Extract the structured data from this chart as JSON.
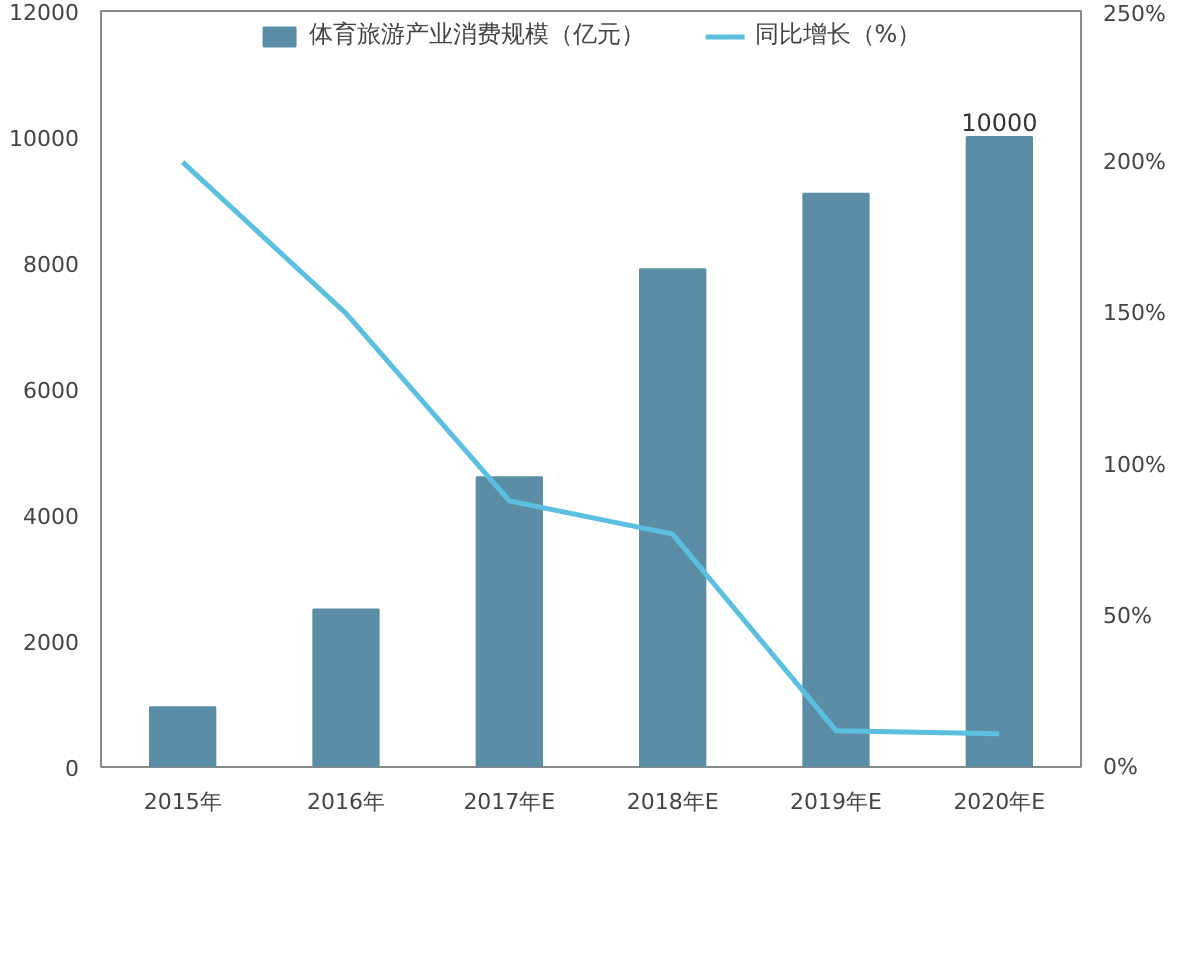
{
  "chart_data": {
    "type": "bar",
    "categories": [
      "2015年",
      "2016年",
      "2017年E",
      "2018年E",
      "2019年E",
      "2020年E"
    ],
    "series": [
      {
        "name": "体育旅游产业消费规模（亿元）",
        "color": "#5b8ea6",
        "values": [
          950,
          2500,
          4600,
          7900,
          9100,
          10000
        ],
        "value_labels": [
          null,
          null,
          null,
          null,
          null,
          "10000"
        ]
      },
      {
        "name": "同比增长（%）",
        "type": "line",
        "axis": "y2",
        "color": "#5bc0e0",
        "values": [
          200,
          150,
          88,
          77,
          12,
          11
        ]
      }
    ],
    "ylim": [
      0,
      12000
    ],
    "yticks": [
      0,
      2000,
      4000,
      6000,
      8000,
      10000,
      12000
    ],
    "y2lim": [
      0,
      250
    ],
    "y2ticks": [
      {
        "value": 0,
        "label": "0%"
      },
      {
        "value": 50,
        "label": "50%"
      },
      {
        "value": 100,
        "label": "100%"
      },
      {
        "value": 150,
        "label": "150%"
      },
      {
        "value": 200,
        "label": "200%"
      },
      {
        "value": 250,
        "label": "250%"
      }
    ],
    "grid": false,
    "legend": "top",
    "marker": "none",
    "line_style": "solid"
  }
}
